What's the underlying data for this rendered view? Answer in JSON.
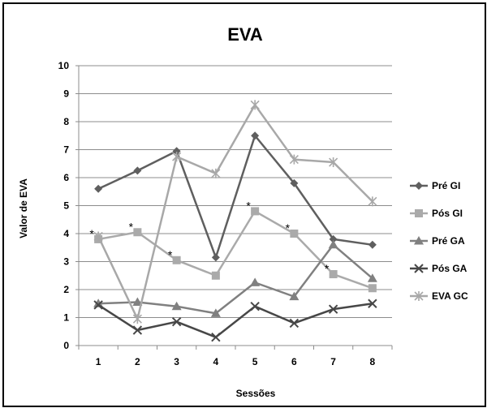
{
  "chart_data": {
    "type": "line",
    "title": "EVA",
    "xlabel": "Sessões",
    "ylabel": "Valor de EVA",
    "categories": [
      "1",
      "2",
      "3",
      "4",
      "5",
      "6",
      "7",
      "8"
    ],
    "ylim": [
      0,
      10
    ],
    "yticks": [
      "0",
      "1",
      "2",
      "3",
      "4",
      "5",
      "6",
      "7",
      "8",
      "9",
      "10"
    ],
    "grid": true,
    "legend_position": "right",
    "series": [
      {
        "name": "Pré GI",
        "marker": "diamond",
        "color": "#5f5f5f",
        "values": [
          5.6,
          6.25,
          6.95,
          3.15,
          7.5,
          5.8,
          3.8,
          3.6
        ]
      },
      {
        "name": "Pós GI",
        "marker": "square",
        "color": "#aaaaaa",
        "values": [
          3.8,
          4.05,
          3.05,
          2.5,
          4.8,
          4.0,
          2.55,
          2.05
        ]
      },
      {
        "name": "Pré GA",
        "marker": "triangle",
        "color": "#808080",
        "values": [
          1.5,
          1.55,
          1.4,
          1.15,
          2.25,
          1.75,
          3.6,
          2.4
        ]
      },
      {
        "name": "Pós GA",
        "marker": "x",
        "color": "#474747",
        "values": [
          1.45,
          0.55,
          0.85,
          0.3,
          1.4,
          0.8,
          1.3,
          1.5
        ]
      },
      {
        "name": "EVA GC",
        "marker": "star",
        "color": "#a8a8a8",
        "values": [
          3.9,
          0.95,
          6.75,
          6.15,
          8.6,
          6.65,
          6.55,
          5.15
        ]
      }
    ],
    "annotations": [
      {
        "text": "*",
        "x": "1",
        "y": 3.8
      },
      {
        "text": "*",
        "x": "2",
        "y": 4.05
      },
      {
        "text": "*",
        "x": "3",
        "y": 3.05
      },
      {
        "text": "*",
        "x": "5",
        "y": 4.8
      },
      {
        "text": "*",
        "x": "6",
        "y": 4.0
      },
      {
        "text": "*",
        "x": "7",
        "y": 2.55
      }
    ]
  }
}
